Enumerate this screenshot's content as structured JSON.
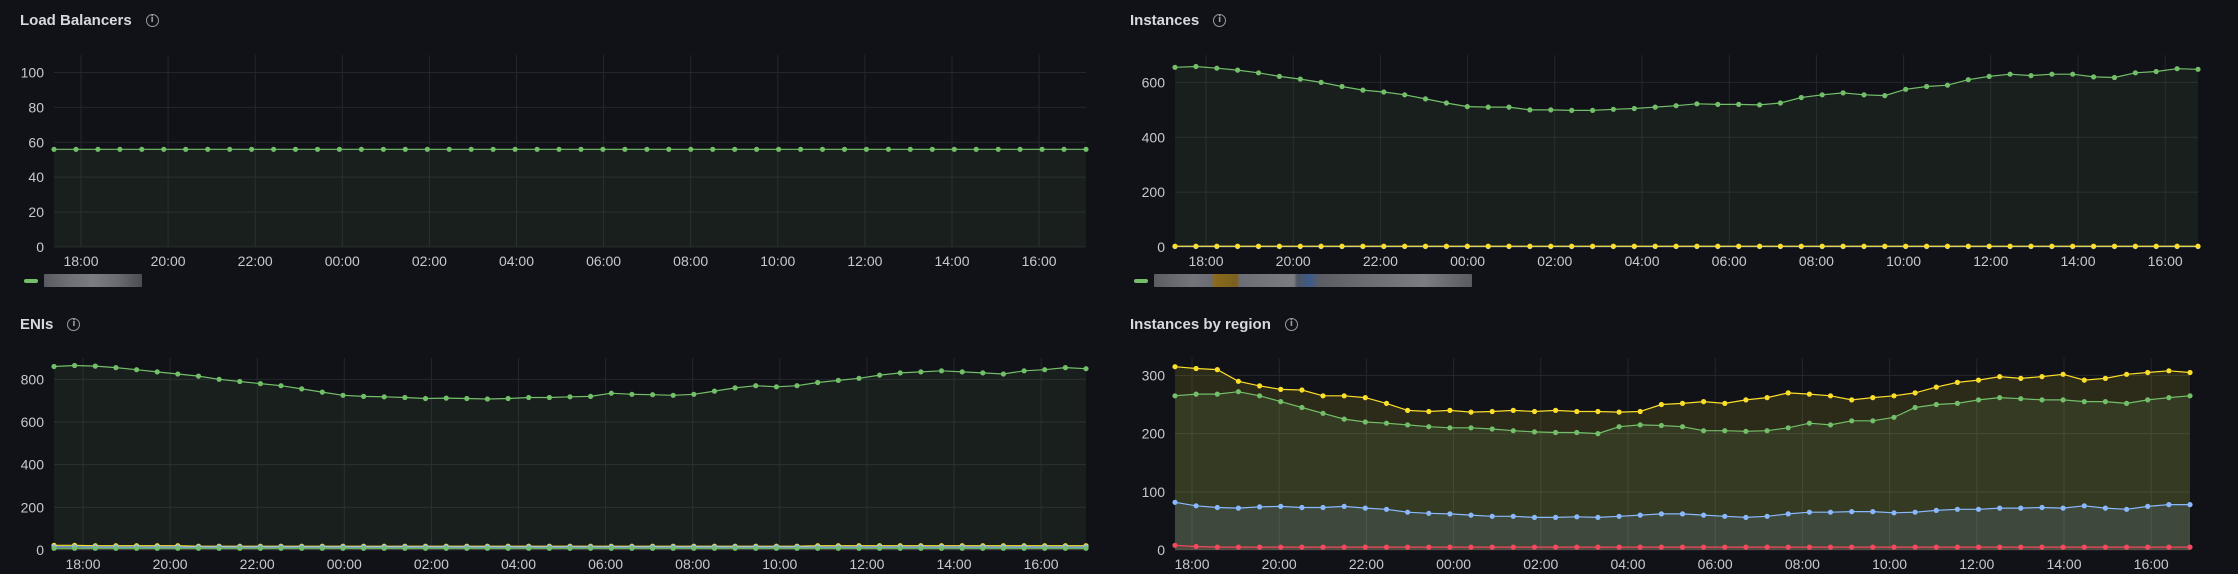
{
  "colors": {
    "green": "#73bf69",
    "yellow": "#fade2a",
    "blue": "#8ab8ff",
    "red": "#f2495c",
    "grid": "#24262c",
    "axis_text": "#c7c8d1"
  },
  "x_ticks": [
    "18:00",
    "20:00",
    "22:00",
    "00:00",
    "02:00",
    "04:00",
    "06:00",
    "08:00",
    "10:00",
    "12:00",
    "14:00",
    "16:00"
  ],
  "panels": [
    {
      "title": "Load Balancers",
      "info_icon": "info-icon",
      "legend_icon": "legend-line-icon",
      "chart_data": {
        "type": "area",
        "ylim": [
          0,
          110
        ],
        "y_ticks": [
          0,
          20,
          40,
          60,
          80,
          100
        ],
        "series": [
          {
            "color": "#73bf69",
            "values": [
              56,
              56,
              56,
              56,
              56,
              56,
              56,
              56,
              56,
              56,
              56,
              56,
              56,
              56,
              56,
              56,
              56,
              56,
              56,
              56,
              56,
              56,
              56,
              56,
              56,
              56,
              56,
              56,
              56,
              56,
              56,
              56,
              56,
              56,
              56,
              56,
              56,
              56,
              56,
              56,
              56,
              56,
              56,
              56,
              56,
              56,
              56,
              56
            ]
          }
        ]
      }
    },
    {
      "title": "Instances",
      "info_icon": "info-icon",
      "legend_icon": "legend-line-icon",
      "chart_data": {
        "type": "area",
        "ylim": [
          0,
          700
        ],
        "y_ticks": [
          0,
          200,
          400,
          600
        ],
        "series": [
          {
            "color": "#73bf69",
            "values": [
              655,
              658,
              652,
              645,
              635,
              622,
              612,
              600,
              585,
              572,
              565,
              555,
              540,
              525,
              512,
              510,
              510,
              500,
              500,
              498,
              498,
              502,
              505,
              510,
              515,
              522,
              520,
              520,
              518,
              525,
              545,
              555,
              562,
              555,
              552,
              575,
              585,
              590,
              610,
              622,
              630,
              625,
              630,
              630,
              620,
              618,
              635,
              640,
              650,
              648
            ]
          },
          {
            "color": "#8ab8ff",
            "values": [
              2,
              2,
              2,
              2,
              2,
              2,
              2,
              2,
              2,
              2,
              2,
              2,
              2,
              2,
              2,
              2,
              2,
              2,
              2,
              2,
              2,
              2,
              2,
              2,
              2,
              2,
              2,
              2,
              2,
              2,
              2,
              2,
              2,
              2,
              2,
              2,
              2,
              2,
              2,
              2,
              2,
              2,
              2,
              2,
              2,
              2,
              2,
              2,
              2,
              2
            ]
          },
          {
            "color": "#fade2a",
            "values": [
              3,
              3,
              3,
              3,
              3,
              3,
              3,
              3,
              3,
              3,
              3,
              3,
              3,
              3,
              3,
              3,
              3,
              3,
              3,
              3,
              3,
              3,
              3,
              3,
              3,
              3,
              3,
              3,
              3,
              3,
              3,
              3,
              3,
              3,
              3,
              3,
              3,
              3,
              3,
              3,
              3,
              3,
              3,
              3,
              3,
              3,
              3,
              3,
              3,
              3
            ]
          }
        ]
      }
    },
    {
      "title": "ENIs",
      "info_icon": "info-icon",
      "chart_data": {
        "type": "area",
        "ylim": [
          0,
          900
        ],
        "y_ticks": [
          0,
          200,
          400,
          600,
          800
        ],
        "series": [
          {
            "color": "#73bf69",
            "values": [
              860,
              865,
              862,
              855,
              845,
              835,
              825,
              815,
              800,
              790,
              780,
              770,
              755,
              740,
              725,
              720,
              718,
              715,
              710,
              712,
              710,
              708,
              710,
              715,
              715,
              718,
              720,
              735,
              730,
              728,
              725,
              730,
              745,
              760,
              770,
              765,
              770,
              785,
              795,
              805,
              820,
              830,
              835,
              840,
              835,
              830,
              825,
              840,
              845,
              855,
              850
            ]
          },
          {
            "color": "#fade2a",
            "values": [
              22,
              22,
              20,
              20,
              20,
              20,
              20,
              18,
              18,
              18,
              18,
              18,
              18,
              18,
              18,
              18,
              18,
              18,
              18,
              18,
              18,
              18,
              18,
              18,
              18,
              18,
              18,
              18,
              18,
              18,
              18,
              18,
              18,
              18,
              18,
              18,
              18,
              20,
              20,
              20,
              20,
              20,
              20,
              20,
              20,
              20,
              20,
              20,
              20,
              20,
              20
            ]
          },
          {
            "color": "#8ab8ff",
            "values": [
              15,
              15,
              14,
              14,
              14,
              14,
              14,
              14,
              14,
              14,
              14,
              14,
              14,
              14,
              14,
              14,
              14,
              14,
              14,
              14,
              14,
              14,
              14,
              14,
              14,
              14,
              14,
              14,
              14,
              14,
              14,
              14,
              14,
              14,
              14,
              14,
              14,
              14,
              14,
              14,
              14,
              14,
              14,
              14,
              14,
              14,
              14,
              14,
              14,
              14,
              14
            ]
          },
          {
            "color": "#73bf69",
            "values": [
              8,
              8,
              8,
              8,
              8,
              8,
              8,
              8,
              8,
              8,
              8,
              8,
              8,
              8,
              8,
              8,
              8,
              8,
              8,
              8,
              8,
              8,
              8,
              8,
              8,
              8,
              8,
              8,
              8,
              8,
              8,
              8,
              8,
              8,
              8,
              8,
              8,
              8,
              8,
              8,
              8,
              8,
              8,
              8,
              8,
              8,
              8,
              8,
              8,
              8,
              8
            ]
          }
        ]
      }
    },
    {
      "title": "Instances by region",
      "info_icon": "info-icon",
      "chart_data": {
        "type": "area",
        "ylim": [
          0,
          330
        ],
        "y_ticks": [
          0,
          100,
          200,
          300
        ],
        "series": [
          {
            "color": "#fade2a",
            "values": [
              315,
              312,
              310,
              290,
              282,
              276,
              275,
              265,
              265,
              262,
              252,
              240,
              238,
              240,
              237,
              238,
              240,
              238,
              240,
              238,
              238,
              237,
              238,
              250,
              252,
              255,
              252,
              258,
              262,
              270,
              268,
              265,
              258,
              262,
              265,
              270,
              280,
              288,
              292,
              298,
              295,
              298,
              302,
              292,
              295,
              302,
              305,
              308,
              305
            ]
          },
          {
            "color": "#73bf69",
            "values": [
              265,
              268,
              268,
              272,
              265,
              255,
              245,
              235,
              225,
              220,
              218,
              215,
              212,
              210,
              210,
              208,
              205,
              203,
              202,
              202,
              200,
              212,
              215,
              214,
              212,
              205,
              205,
              204,
              205,
              210,
              218,
              215,
              222,
              222,
              228,
              245,
              250,
              252,
              258,
              262,
              260,
              258,
              258,
              255,
              255,
              252,
              258,
              262,
              265
            ]
          },
          {
            "color": "#8ab8ff",
            "values": [
              82,
              76,
              73,
              72,
              74,
              75,
              73,
              73,
              75,
              72,
              70,
              65,
              63,
              62,
              60,
              58,
              58,
              56,
              56,
              57,
              56,
              58,
              60,
              62,
              62,
              60,
              58,
              56,
              58,
              62,
              65,
              65,
              66,
              66,
              64,
              65,
              68,
              70,
              70,
              72,
              72,
              73,
              72,
              76,
              72,
              70,
              75,
              78,
              78
            ]
          },
          {
            "color": "#f2495c",
            "values": [
              8,
              6,
              5,
              5,
              5,
              5,
              5,
              5,
              5,
              5,
              5,
              5,
              5,
              5,
              5,
              5,
              5,
              5,
              5,
              5,
              5,
              5,
              5,
              5,
              5,
              5,
              5,
              5,
              5,
              5,
              5,
              5,
              5,
              5,
              5,
              5,
              5,
              5,
              5,
              5,
              5,
              5,
              5,
              5,
              5,
              5,
              5,
              5,
              5
            ]
          }
        ]
      }
    }
  ]
}
